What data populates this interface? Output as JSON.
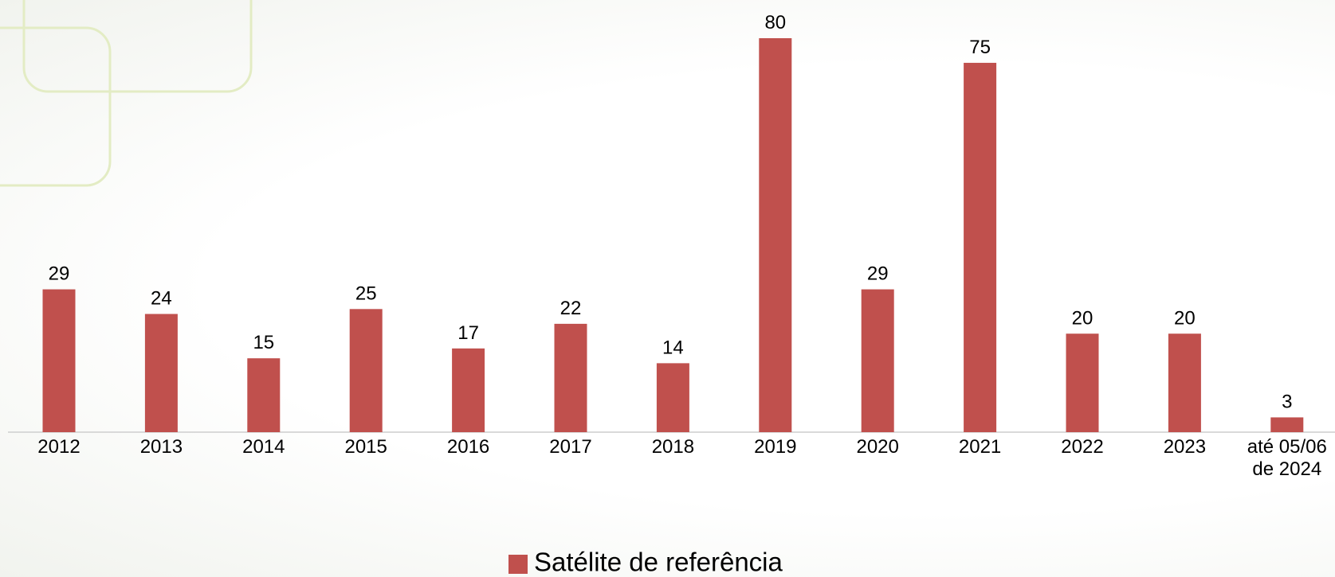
{
  "chart_data": {
    "type": "bar",
    "categories": [
      "2012",
      "2013",
      "2014",
      "2015",
      "2016",
      "2017",
      "2018",
      "2019",
      "2020",
      "2021",
      "2022",
      "2023",
      "até 05/06 de 2024"
    ],
    "series": [
      {
        "name": "Satélite de referência",
        "color": "#c0504d",
        "values": [
          29,
          24,
          15,
          25,
          17,
          22,
          14,
          80,
          29,
          75,
          20,
          20,
          3
        ]
      }
    ],
    "legend": "bottom"
  }
}
